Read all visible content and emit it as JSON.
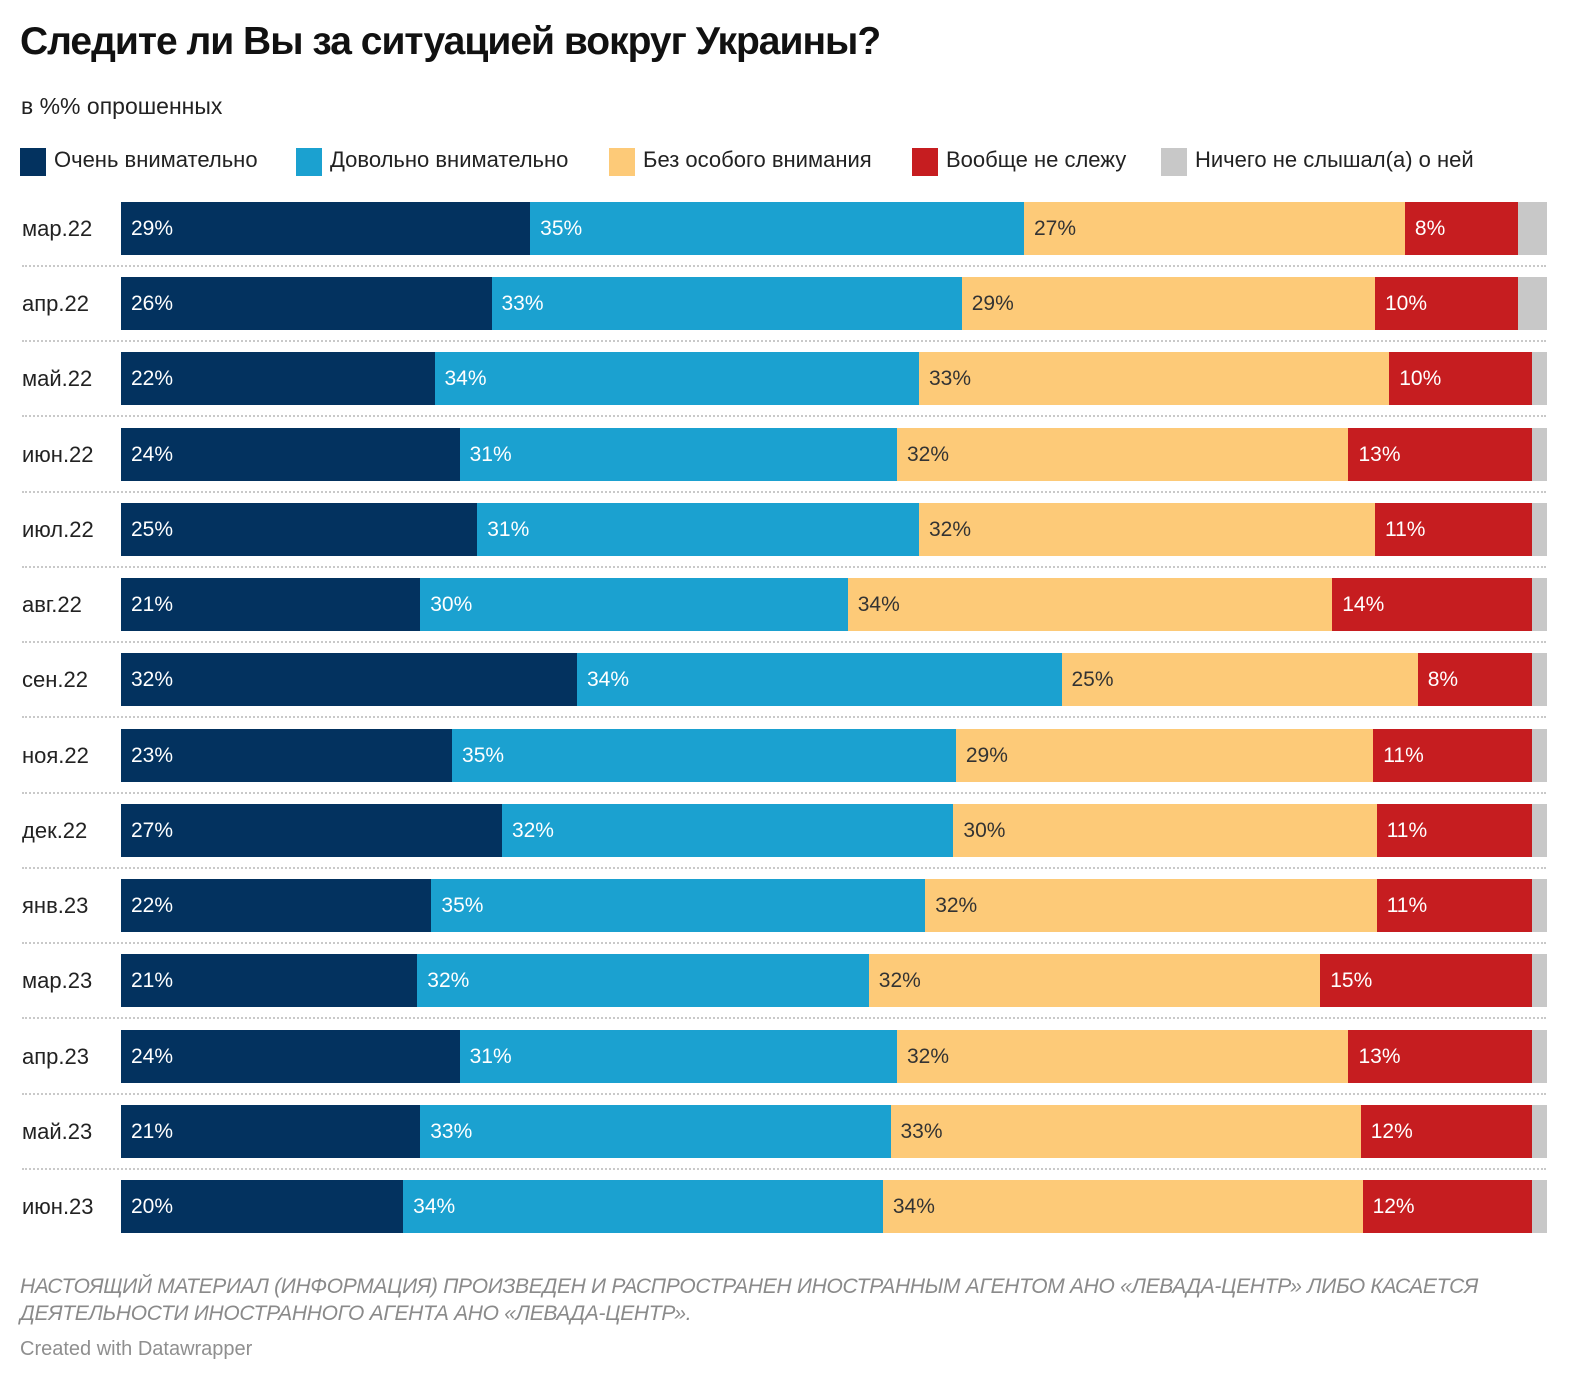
{
  "title": "Следите ли Вы за ситуацией вокруг Украины?",
  "subtitle": "в %% опрошенных",
  "notes": "НАСТОЯЩИЙ МАТЕРИАЛ (ИНФОРМАЦИЯ) ПРОИЗВЕДЕН И РАСПРОСТРАНЕН ИНОСТРАННЫМ АГЕНТОМ АНО «ЛЕВАДА-ЦЕНТР» ЛИБО КАСАЕТСЯ ДЕЯТЕЛЬНОСТИ ИНОСТРАННОГО АГЕНТА АНО «ЛЕВАДА-ЦЕНТР».",
  "credit": "Created with Datawrapper",
  "chart_data": {
    "type": "bar",
    "orientation": "horizontal",
    "stacked": true,
    "value_suffix": "%",
    "xlim": [
      0,
      100
    ],
    "legend_position": "top",
    "grid": false,
    "categories": [
      "мар.22",
      "апр.22",
      "май.22",
      "июн.22",
      "июл.22",
      "авг.22",
      "сен.22",
      "ноя.22",
      "дек.22",
      "янв.23",
      "мар.23",
      "апр.23",
      "май.23",
      "июн.23"
    ],
    "series": [
      {
        "name": "Очень внимательно",
        "color": "#03325f",
        "label_color": "#ffffff",
        "values": [
          29,
          26,
          22,
          24,
          25,
          21,
          32,
          23,
          27,
          22,
          21,
          24,
          21,
          20
        ]
      },
      {
        "name": "Довольно внимательно",
        "color": "#1ba1d0",
        "label_color": "#ffffff",
        "values": [
          35,
          33,
          34,
          31,
          31,
          30,
          34,
          35,
          32,
          35,
          32,
          31,
          33,
          34
        ]
      },
      {
        "name": "Без особого внимания",
        "color": "#fdca78",
        "label_color": "#333333",
        "values": [
          27,
          29,
          33,
          32,
          32,
          34,
          25,
          29,
          30,
          32,
          32,
          32,
          33,
          34
        ]
      },
      {
        "name": "Вообще не слежу",
        "color": "#c61d20",
        "label_color": "#ffffff",
        "values": [
          8,
          10,
          10,
          13,
          11,
          14,
          8,
          11,
          11,
          11,
          15,
          13,
          12,
          12
        ]
      },
      {
        "name": "Ничего не слышал(а) о ней",
        "color": "#c8c8c8",
        "label_color": "#333333",
        "values": [
          2,
          2,
          1,
          1,
          1,
          1,
          1,
          1,
          1,
          1,
          1,
          1,
          1,
          1
        ]
      }
    ],
    "hidden_labels": [
      4
    ]
  }
}
